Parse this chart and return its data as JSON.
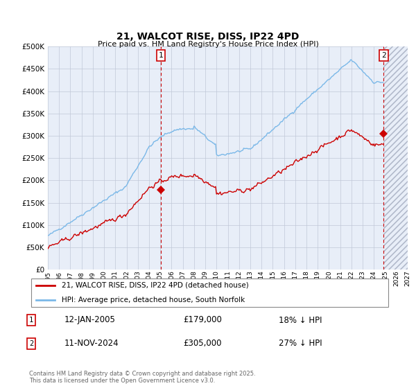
{
  "title": "21, WALCOT RISE, DISS, IP22 4PD",
  "subtitle": "Price paid vs. HM Land Registry's House Price Index (HPI)",
  "ylim": [
    0,
    500000
  ],
  "yticks": [
    0,
    50000,
    100000,
    150000,
    200000,
    250000,
    300000,
    350000,
    400000,
    450000,
    500000
  ],
  "ytick_labels": [
    "£0",
    "£50K",
    "£100K",
    "£150K",
    "£200K",
    "£250K",
    "£300K",
    "£350K",
    "£400K",
    "£450K",
    "£500K"
  ],
  "xlim_start": 1995.0,
  "xlim_end": 2027.0,
  "xtick_years": [
    1995,
    1996,
    1997,
    1998,
    1999,
    2000,
    2001,
    2002,
    2003,
    2004,
    2005,
    2006,
    2007,
    2008,
    2009,
    2010,
    2011,
    2012,
    2013,
    2014,
    2015,
    2016,
    2017,
    2018,
    2019,
    2020,
    2021,
    2022,
    2023,
    2024,
    2025,
    2026,
    2027
  ],
  "hpi_color": "#7ab8e8",
  "price_color": "#cc0000",
  "annotation_color": "#cc0000",
  "grid_color": "#c0c8d8",
  "bg_color": "#e8eef8",
  "marker1_x": 2005.04,
  "marker1_y": 179000,
  "marker2_x": 2024.87,
  "marker2_y": 305000,
  "sale1_date": "12-JAN-2005",
  "sale1_price": "£179,000",
  "sale1_hpi": "18% ↓ HPI",
  "sale2_date": "11-NOV-2024",
  "sale2_price": "£305,000",
  "sale2_hpi": "27% ↓ HPI",
  "legend1_label": "21, WALCOT RISE, DISS, IP22 4PD (detached house)",
  "legend2_label": "HPI: Average price, detached house, South Norfolk",
  "footnote": "Contains HM Land Registry data © Crown copyright and database right 2025.\nThis data is licensed under the Open Government Licence v3.0."
}
